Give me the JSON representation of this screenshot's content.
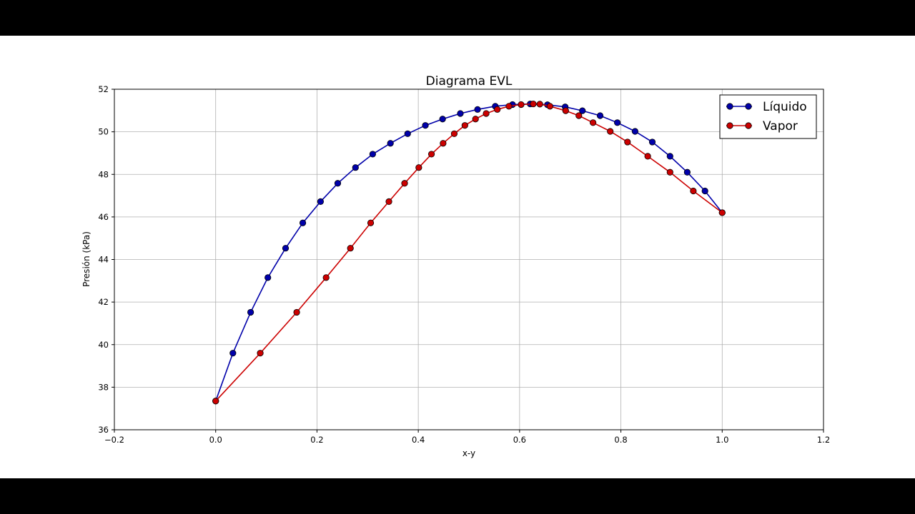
{
  "chart_data": {
    "type": "line",
    "title": "Diagrama EVL",
    "xlabel": "x-y",
    "ylabel": "Presión (kPa)",
    "xlim": [
      -0.2,
      1.2
    ],
    "ylim": [
      36,
      52
    ],
    "xticks": [
      -0.2,
      0.0,
      0.2,
      0.4,
      0.6,
      0.8,
      1.0,
      1.2
    ],
    "xtick_labels": [
      "−0.2",
      "0.0",
      "0.2",
      "0.4",
      "0.6",
      "0.8",
      "1.0",
      "1.2"
    ],
    "yticks": [
      36,
      38,
      40,
      42,
      44,
      46,
      48,
      50,
      52
    ],
    "ytick_labels": [
      "36",
      "38",
      "40",
      "42",
      "44",
      "46",
      "48",
      "50",
      "52"
    ],
    "grid": true,
    "legend_position": "top-right",
    "series": [
      {
        "name": "Líquido",
        "color": "#0000aa",
        "marker": "circle",
        "x": [
          0.0,
          0.034,
          0.069,
          0.103,
          0.138,
          0.172,
          0.207,
          0.241,
          0.276,
          0.31,
          0.345,
          0.379,
          0.414,
          0.448,
          0.483,
          0.517,
          0.552,
          0.586,
          0.621,
          0.655,
          0.69,
          0.724,
          0.759,
          0.793,
          0.828,
          0.862,
          0.897,
          0.931,
          0.966,
          1.0
        ],
        "y": [
          37.35,
          39.6,
          41.52,
          43.15,
          44.53,
          45.72,
          46.72,
          47.58,
          48.32,
          48.95,
          49.46,
          49.91,
          50.3,
          50.6,
          50.86,
          51.05,
          51.2,
          51.28,
          51.31,
          51.27,
          51.17,
          50.99,
          50.76,
          50.43,
          50.02,
          49.52,
          48.85,
          48.1,
          47.22,
          46.2
        ]
      },
      {
        "name": "Vapor",
        "color": "#cc0000",
        "marker": "circle",
        "x": [
          0.0,
          0.088,
          0.16,
          0.218,
          0.266,
          0.306,
          0.342,
          0.373,
          0.401,
          0.426,
          0.449,
          0.471,
          0.492,
          0.513,
          0.534,
          0.556,
          0.579,
          0.603,
          0.627,
          0.64,
          0.66,
          0.691,
          0.717,
          0.745,
          0.779,
          0.813,
          0.853,
          0.897,
          0.943,
          1.0
        ],
        "y": [
          37.35,
          39.6,
          41.52,
          43.15,
          44.53,
          45.72,
          46.72,
          47.58,
          48.32,
          48.95,
          49.46,
          49.91,
          50.3,
          50.6,
          50.86,
          51.05,
          51.2,
          51.28,
          51.31,
          51.3,
          51.2,
          50.99,
          50.76,
          50.43,
          50.02,
          49.52,
          48.85,
          48.1,
          47.22,
          46.2
        ]
      }
    ]
  }
}
